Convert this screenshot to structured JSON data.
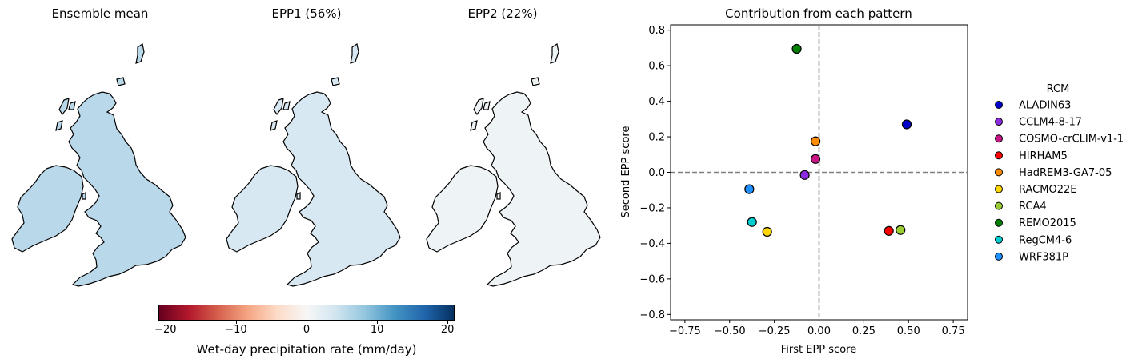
{
  "maps": {
    "titles": [
      "Ensemble mean",
      "EPP1 (56%)",
      "EPP2 (22%)"
    ]
  },
  "colorbar": {
    "label": "Wet-day precipitation rate (mm/day)",
    "ticks": [
      -20,
      -10,
      0,
      10,
      20
    ],
    "tick_labels": [
      "−20",
      "−10",
      "0",
      "10",
      "20"
    ],
    "range": [
      -21,
      21
    ],
    "colors": [
      "#67001f",
      "#b2182b",
      "#d6604d",
      "#f4a582",
      "#fddbc7",
      "#f7f7f7",
      "#d1e5f0",
      "#92c5de",
      "#4393c3",
      "#2166ac",
      "#053061"
    ]
  },
  "map_fill_colors": {
    "ensemble_mean": "#b9d8e9",
    "epp1": "#d8e8f2",
    "epp2": "#eef3f6"
  },
  "chart_data": {
    "type": "scatter",
    "title": "Contribution from each pattern",
    "xlabel": "First EPP score",
    "ylabel": "Second EPP score",
    "xlim": [
      -0.83,
      0.83
    ],
    "ylim": [
      -0.83,
      0.83
    ],
    "xticks": [
      -0.75,
      -0.5,
      -0.25,
      0.0,
      0.25,
      0.5,
      0.75
    ],
    "xtick_labels": [
      "−0.75",
      "−0.50",
      "−0.25",
      "0.00",
      "0.25",
      "0.50",
      "0.75"
    ],
    "yticks": [
      -0.8,
      -0.6,
      -0.4,
      -0.2,
      0.0,
      0.2,
      0.4,
      0.6,
      0.8
    ],
    "ytick_labels": [
      "−0.8",
      "−0.6",
      "−0.4",
      "−0.2",
      "0.0",
      "0.2",
      "0.4",
      "0.6",
      "0.8"
    ],
    "reference_lines": {
      "x": 0,
      "y": 0,
      "style": "dashed",
      "color": "#808080"
    },
    "legend": {
      "title": "RCM",
      "placement": "outside-right"
    },
    "series": [
      {
        "name": "ALADIN63",
        "color": "#0000cd",
        "x": 0.49,
        "y": 0.27
      },
      {
        "name": "CCLM4-8-17",
        "color": "#8a2be2",
        "x": -0.08,
        "y": -0.015
      },
      {
        "name": "COSMO-crCLIM-v1-1",
        "color": "#c71585",
        "x": -0.02,
        "y": 0.075
      },
      {
        "name": "HIRHAM5",
        "color": "#ff0000",
        "x": 0.39,
        "y": -0.33
      },
      {
        "name": "HadREM3-GA7-05",
        "color": "#ff8c00",
        "x": -0.02,
        "y": 0.175
      },
      {
        "name": "RACMO22E",
        "color": "#ffd700",
        "x": -0.29,
        "y": -0.335
      },
      {
        "name": "RCA4",
        "color": "#9acd32",
        "x": 0.455,
        "y": -0.325
      },
      {
        "name": "REMO2015",
        "color": "#008000",
        "x": -0.125,
        "y": 0.695
      },
      {
        "name": "RegCM4-6",
        "color": "#00ced1",
        "x": -0.375,
        "y": -0.28
      },
      {
        "name": "WRF381P",
        "color": "#1e90ff",
        "x": -0.39,
        "y": -0.095
      }
    ]
  }
}
